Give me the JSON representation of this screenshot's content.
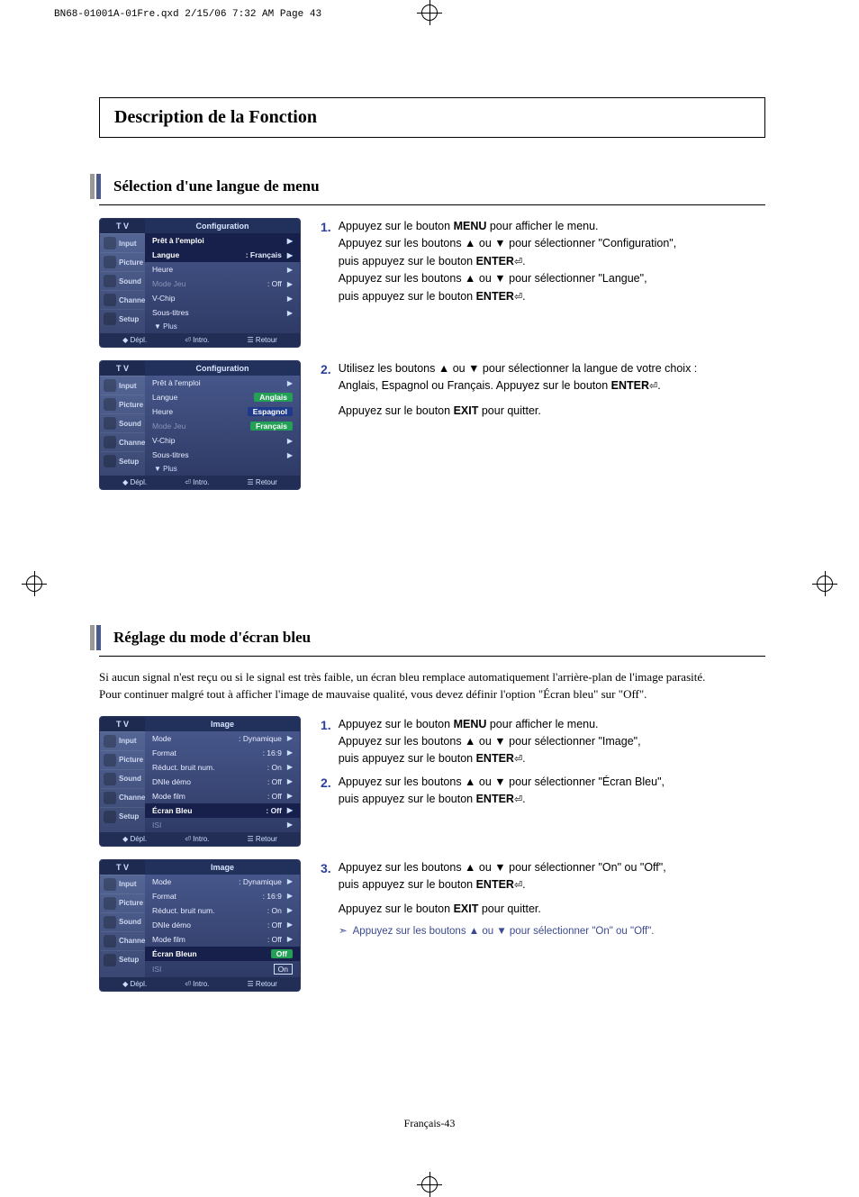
{
  "doc_header": "BN68-01001A-01Fre.qxd  2/15/06  7:32 AM  Page 43",
  "main_title": "Description de la Fonction",
  "page_number": "Français-43",
  "section1": {
    "heading": "Sélection d'une langue de menu",
    "steps": {
      "s1": {
        "num": "1.",
        "text_a": "Appuyez sur le bouton ",
        "menu": "MENU",
        "text_b": " pour afficher le menu.",
        "text_c": "Appuyez sur les boutons ▲ ou ▼ pour sélectionner \"Configuration\",",
        "text_d": "puis appuyez sur le bouton ",
        "enter": "ENTER",
        "text_e": "Appuyez sur les boutons ▲ ou ▼ pour sélectionner \"Langue\",",
        "text_f": "puis appuyez sur le bouton "
      },
      "s2": {
        "num": "2.",
        "text_a": "Utilisez les boutons ▲ ou ▼ pour sélectionner la langue de votre choix :",
        "text_b": "Anglais, Espagnol ou Français. Appuyez sur le bouton ",
        "enter": "ENTER",
        "text_c": "Appuyez sur le bouton ",
        "exit": "EXIT",
        "text_d": " pour quitter."
      }
    },
    "osd1": {
      "tv": "T V",
      "title": "Configuration",
      "side": [
        "Input",
        "Picture",
        "Sound",
        "Channel",
        "Setup"
      ],
      "rows": [
        {
          "label": "Prêt à l'emploi",
          "val": "",
          "sel": true
        },
        {
          "label": "Langue",
          "val": ": Français",
          "sel": true
        },
        {
          "label": "Heure",
          "val": "",
          "sel": false
        },
        {
          "label": "Mode Jeu",
          "val": ": Off",
          "dim": true
        },
        {
          "label": "V-Chip",
          "val": "",
          "sel": false
        },
        {
          "label": "Sous-titres",
          "val": "",
          "sel": false
        }
      ],
      "more": "▼  Plus",
      "footer": [
        "◆ Dépl.",
        "⏎ Intro.",
        "☰ Retour"
      ]
    },
    "osd2": {
      "tv": "T V",
      "title": "Configuration",
      "side": [
        "Input",
        "Picture",
        "Sound",
        "Channel",
        "Setup"
      ],
      "rows": [
        {
          "label": "Prêt à l'emploi",
          "val": ""
        },
        {
          "label": "Langue",
          "val": "Anglais",
          "hl": "green"
        },
        {
          "label": "Heure",
          "val": "Espagnol",
          "hl": "blue"
        },
        {
          "label": "Mode Jeu",
          "val": "Français",
          "hl": "green",
          "dim": true
        },
        {
          "label": "V-Chip",
          "val": ""
        },
        {
          "label": "Sous-titres",
          "val": ""
        }
      ],
      "more": "▼  Plus",
      "footer": [
        "◆ Dépl.",
        "⏎ Intro.",
        "☰ Retour"
      ]
    }
  },
  "section2": {
    "heading": "Réglage du mode d'écran bleu",
    "intro_a": "Si aucun signal n'est reçu ou si le signal est très faible, un écran bleu remplace automatiquement l'arrière-plan de l'image parasité.",
    "intro_b": "Pour continuer malgré tout à afficher l'image de mauvaise qualité, vous devez définir l'option \"Écran bleu\" sur \"Off\".",
    "steps": {
      "s1": {
        "num": "1.",
        "text_a": "Appuyez sur le bouton ",
        "menu": "MENU",
        "text_b": " pour afficher le menu.",
        "text_c": "Appuyez sur les boutons ▲ ou ▼ pour sélectionner \"Image\",",
        "text_d": "puis appuyez sur le bouton ",
        "enter": "ENTER"
      },
      "s2": {
        "num": "2.",
        "text_a": "Appuyez sur les boutons ▲ ou ▼ pour sélectionner \"Écran Bleu\",",
        "text_b": "puis appuyez sur le bouton ",
        "enter": "ENTER"
      },
      "s3": {
        "num": "3.",
        "text_a": "Appuyez sur les boutons ▲ ou ▼ pour sélectionner \"On\" ou \"Off\",",
        "text_b": "puis appuyez sur le bouton ",
        "enter": "ENTER",
        "text_c": "Appuyez sur le bouton ",
        "exit": "EXIT",
        "text_d": " pour quitter."
      }
    },
    "note": "Appuyez sur les boutons ▲ ou ▼  pour sélectionner \"On\" ou \"Off\".",
    "osd1": {
      "tv": "T V",
      "title": "Image",
      "side": [
        "Input",
        "Picture",
        "Sound",
        "Channel",
        "Setup"
      ],
      "rows": [
        {
          "label": "Mode",
          "val": ": Dynamique"
        },
        {
          "label": "Format",
          "val": ": 16:9"
        },
        {
          "label": "Réduct. bruit num.",
          "val": ": On"
        },
        {
          "label": "DNIe démo",
          "val": ": Off"
        },
        {
          "label": "Mode film",
          "val": ": Off"
        },
        {
          "label": "Écran Bleu",
          "val": ": Off",
          "sel": true
        },
        {
          "label": "ISI",
          "val": "",
          "dim": true
        }
      ],
      "footer": [
        "◆ Dépl.",
        "⏎ Intro.",
        "☰ Retour"
      ]
    },
    "osd2": {
      "tv": "T V",
      "title": "Image",
      "side": [
        "Input",
        "Picture",
        "Sound",
        "Channel",
        "Setup"
      ],
      "rows": [
        {
          "label": "Mode",
          "val": ": Dynamique"
        },
        {
          "label": "Format",
          "val": ": 16:9"
        },
        {
          "label": "Réduct. bruit num.",
          "val": ": On"
        },
        {
          "label": "DNIe démo",
          "val": ": Off"
        },
        {
          "label": "Mode film",
          "val": ": Off"
        },
        {
          "label": "Écran Bleun",
          "val": "Off",
          "sel": true,
          "hl": "green"
        },
        {
          "label": "ISI",
          "val": "On",
          "dim": true,
          "hl": "box"
        }
      ],
      "footer": [
        "◆ Dépl.",
        "⏎ Intro.",
        "☰ Retour"
      ]
    }
  }
}
